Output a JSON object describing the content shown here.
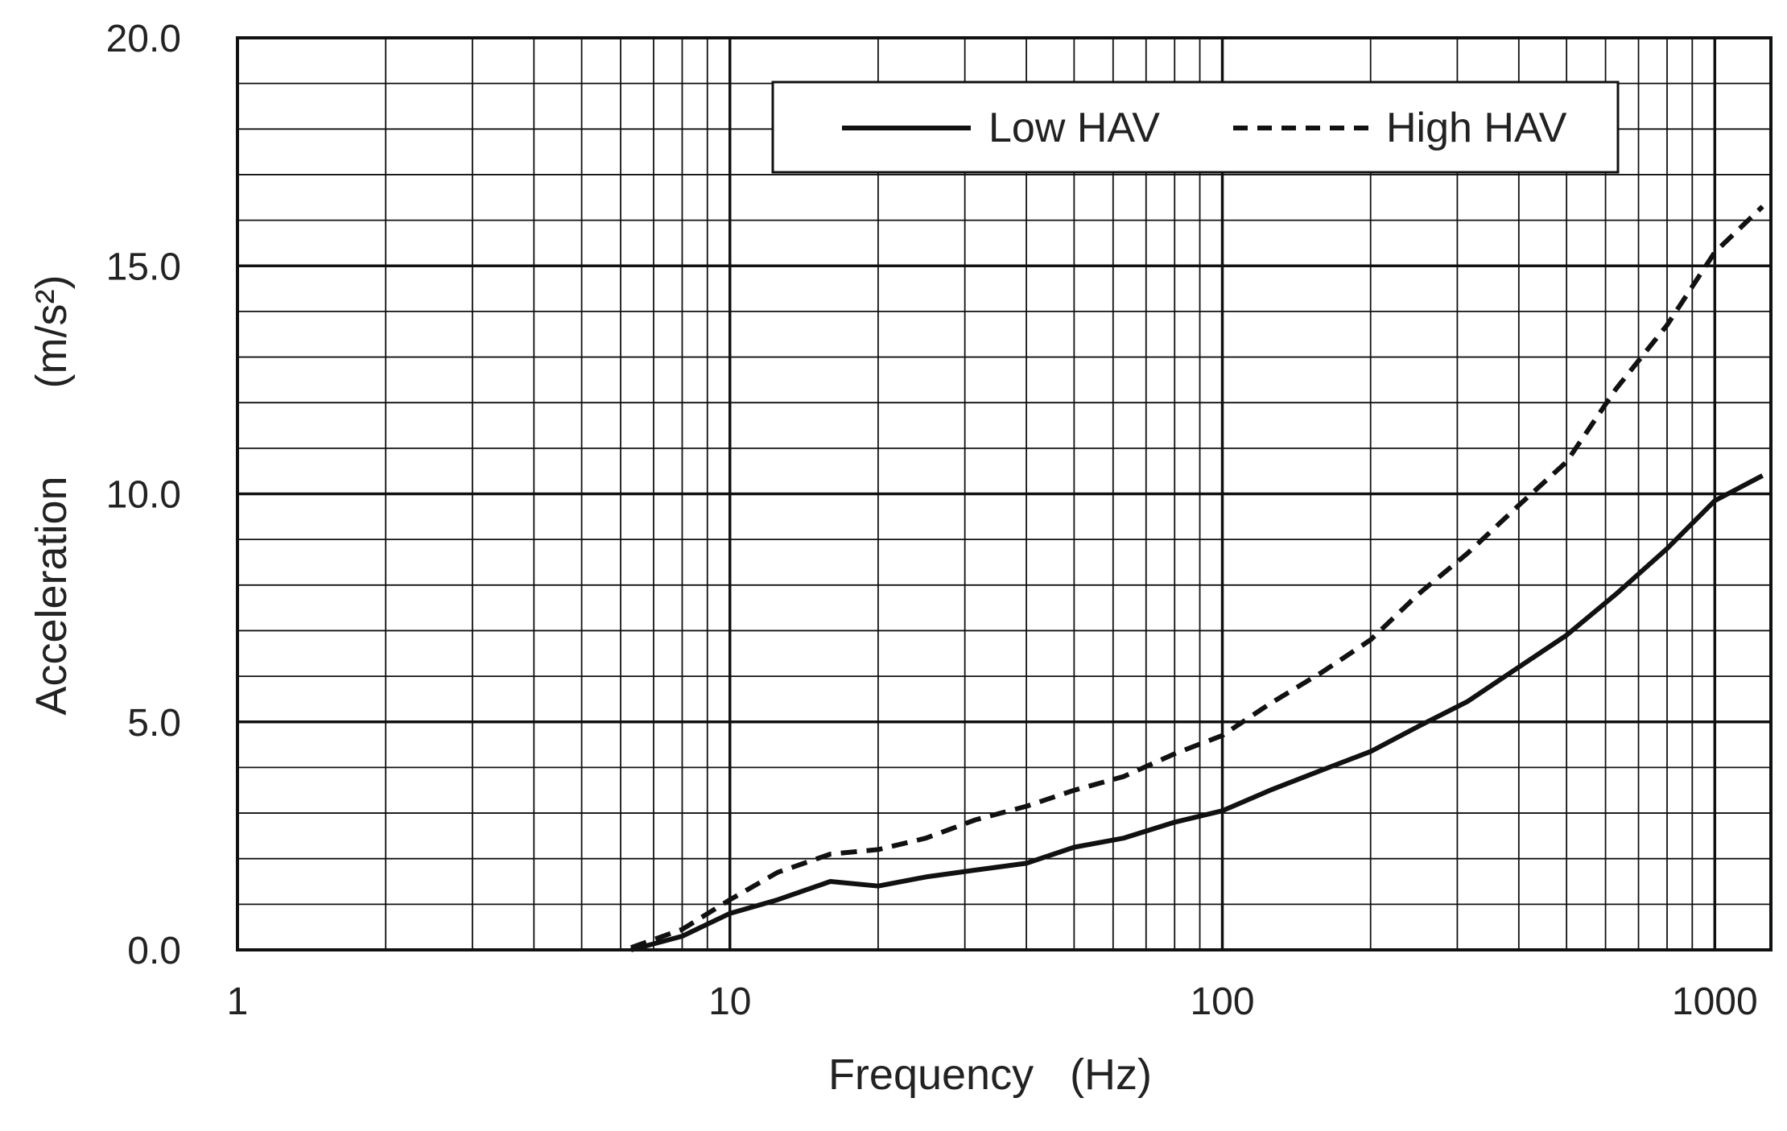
{
  "chart_data": {
    "type": "line",
    "title": "",
    "xlabel": "Frequency   (Hz)",
    "ylabel": "Acceleration",
    "ylabel_unit": "(m/s²)",
    "x_scale": "log",
    "xlim": [
      1,
      1300
    ],
    "ylim": [
      0,
      20
    ],
    "x_ticks": [
      1,
      10,
      100,
      1000
    ],
    "x_tick_labels": [
      "1",
      "10",
      "100",
      "1000"
    ],
    "y_ticks": [
      0,
      5,
      10,
      15,
      20
    ],
    "y_tick_labels": [
      "0.0",
      "5.0",
      "10.0",
      "15.0",
      "20.0"
    ],
    "y_minor_step": 1,
    "grid": true,
    "legend_position": "top",
    "series": [
      {
        "name": "Low HAV",
        "style": "solid",
        "color": "#111111",
        "x": [
          6.3,
          8,
          10,
          12.5,
          16,
          20,
          25,
          31.5,
          40,
          50,
          63,
          80,
          100,
          125,
          160,
          200,
          250,
          315,
          400,
          500,
          630,
          800,
          1000,
          1250
        ],
        "y": [
          0.0,
          0.3,
          0.8,
          1.1,
          1.5,
          1.4,
          1.6,
          1.75,
          1.9,
          2.25,
          2.45,
          2.8,
          3.05,
          3.5,
          3.95,
          4.35,
          4.9,
          5.45,
          6.2,
          6.9,
          7.8,
          8.8,
          9.85,
          10.4
        ]
      },
      {
        "name": "High HAV",
        "style": "dashed",
        "color": "#111111",
        "x": [
          6.3,
          8,
          10,
          12.5,
          16,
          20,
          25,
          31.5,
          40,
          50,
          63,
          80,
          100,
          125,
          160,
          200,
          250,
          315,
          400,
          500,
          630,
          800,
          1000,
          1250
        ],
        "y": [
          0.05,
          0.45,
          1.1,
          1.7,
          2.1,
          2.2,
          2.45,
          2.85,
          3.15,
          3.5,
          3.8,
          4.3,
          4.7,
          5.4,
          6.1,
          6.8,
          7.8,
          8.7,
          9.75,
          10.7,
          12.3,
          13.7,
          15.3,
          16.3
        ]
      }
    ]
  },
  "colors": {
    "background": "#ffffff",
    "grid": "#111111",
    "text": "#222222"
  }
}
